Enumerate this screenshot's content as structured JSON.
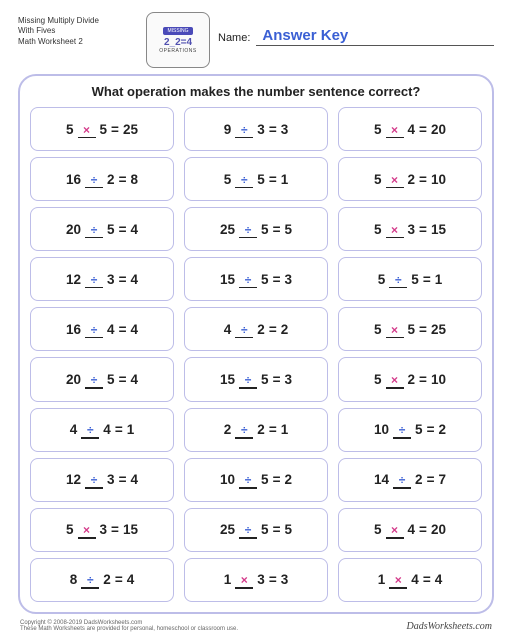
{
  "header": {
    "title_line1": "Missing Multiply Divide",
    "title_line2": "With Fives",
    "title_line3": "Math Worksheet 2",
    "logo_banner": "MISSING",
    "logo_math": "2_2=4",
    "logo_sub": "OPERATIONS",
    "name_label": "Name:",
    "answer_key": "Answer Key",
    "answer_key_color": "#3a5fd4"
  },
  "question": "What operation makes the number sentence correct?",
  "colors": {
    "frame_border": "#bdbde8",
    "op_mult": "#d43a8a",
    "op_div": "#3a5fd4",
    "text": "#222222"
  },
  "symbols": {
    "mult": "✖",
    "div": "➗"
  },
  "problems": [
    [
      {
        "a": "5",
        "op": "mult",
        "b": "5",
        "r": "25"
      },
      {
        "a": "9",
        "op": "div",
        "b": "3",
        "r": "3"
      },
      {
        "a": "5",
        "op": "mult",
        "b": "4",
        "r": "20"
      }
    ],
    [
      {
        "a": "16",
        "op": "div",
        "b": "2",
        "r": "8"
      },
      {
        "a": "5",
        "op": "div",
        "b": "5",
        "r": "1"
      },
      {
        "a": "5",
        "op": "mult",
        "b": "2",
        "r": "10"
      }
    ],
    [
      {
        "a": "20",
        "op": "div",
        "b": "5",
        "r": "4"
      },
      {
        "a": "25",
        "op": "div",
        "b": "5",
        "r": "5"
      },
      {
        "a": "5",
        "op": "mult",
        "b": "3",
        "r": "15"
      }
    ],
    [
      {
        "a": "12",
        "op": "div",
        "b": "3",
        "r": "4"
      },
      {
        "a": "15",
        "op": "div",
        "b": "5",
        "r": "3"
      },
      {
        "a": "5",
        "op": "div",
        "b": "5",
        "r": "1"
      }
    ],
    [
      {
        "a": "16",
        "op": "div",
        "b": "4",
        "r": "4"
      },
      {
        "a": "4",
        "op": "div",
        "b": "2",
        "r": "2"
      },
      {
        "a": "5",
        "op": "mult",
        "b": "5",
        "r": "25"
      }
    ],
    [
      {
        "a": "20",
        "op": "div",
        "b": "5",
        "r": "4"
      },
      {
        "a": "15",
        "op": "div",
        "b": "5",
        "r": "3"
      },
      {
        "a": "5",
        "op": "mult",
        "b": "2",
        "r": "10"
      }
    ],
    [
      {
        "a": "4",
        "op": "div",
        "b": "4",
        "r": "1"
      },
      {
        "a": "2",
        "op": "div",
        "b": "2",
        "r": "1"
      },
      {
        "a": "10",
        "op": "div",
        "b": "5",
        "r": "2"
      }
    ],
    [
      {
        "a": "12",
        "op": "div",
        "b": "3",
        "r": "4"
      },
      {
        "a": "10",
        "op": "div",
        "b": "5",
        "r": "2"
      },
      {
        "a": "14",
        "op": "div",
        "b": "2",
        "r": "7"
      }
    ],
    [
      {
        "a": "5",
        "op": "mult",
        "b": "3",
        "r": "15"
      },
      {
        "a": "25",
        "op": "div",
        "b": "5",
        "r": "5"
      },
      {
        "a": "5",
        "op": "mult",
        "b": "4",
        "r": "20"
      }
    ],
    [
      {
        "a": "8",
        "op": "div",
        "b": "2",
        "r": "4"
      },
      {
        "a": "1",
        "op": "mult",
        "b": "3",
        "r": "3"
      },
      {
        "a": "1",
        "op": "mult",
        "b": "4",
        "r": "4"
      }
    ]
  ],
  "footer": {
    "copyright": "Copyright © 2008-2019 DadsWorksheets.com",
    "subline": "These Math Worksheets are provided for personal, homeschool or classroom use.",
    "site": "DadsWorksheets.com"
  }
}
